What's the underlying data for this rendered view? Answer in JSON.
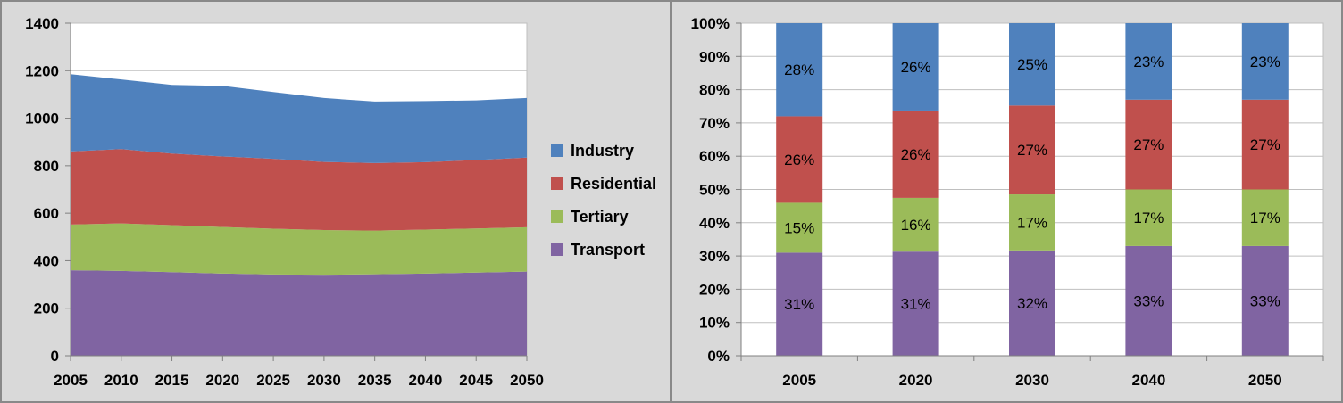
{
  "colors": {
    "industry_blue": "#4F81BD",
    "residential_red": "#C0504D",
    "tertiary_green": "#9BBB59",
    "transport_purple": "#8064A2",
    "panel_background": "#D9D9D9",
    "panel_border": "#898989",
    "plot_background": "#FFFFFF",
    "gridline": "#BFBFBF",
    "axis_line": "#808080",
    "label_text": "#000000"
  },
  "legend": {
    "position": "right",
    "items": [
      {
        "label": "Industry",
        "color": "#4F81BD"
      },
      {
        "label": "Residential",
        "color": "#C0504D"
      },
      {
        "label": "Tertiary",
        "color": "#9BBB59"
      },
      {
        "label": "Transport",
        "color": "#8064A2"
      }
    ]
  },
  "chart_data": [
    {
      "type": "area",
      "stacked": true,
      "title": "",
      "xlabel": "",
      "ylabel": "",
      "grid": true,
      "legend_position": "right",
      "x": [
        2005,
        2010,
        2015,
        2020,
        2025,
        2030,
        2035,
        2040,
        2045,
        2050
      ],
      "xtick_labels": [
        "2005",
        "2010",
        "2015",
        "2020",
        "2025",
        "2030",
        "2035",
        "2040",
        "2045",
        "2050"
      ],
      "ylim": [
        0,
        1400
      ],
      "ytick_step": 200,
      "ytick_labels": [
        "0",
        "200",
        "400",
        "600",
        "800",
        "1000",
        "1200",
        "1400"
      ],
      "series": [
        {
          "name": "Transport",
          "color": "#8064A2",
          "values": [
            360,
            357,
            352,
            346,
            342,
            341,
            343,
            346,
            350,
            354
          ]
        },
        {
          "name": "Tertiary",
          "color": "#9BBB59",
          "values": [
            192,
            200,
            198,
            196,
            193,
            188,
            184,
            185,
            186,
            187
          ]
        },
        {
          "name": "Residential",
          "color": "#C0504D",
          "values": [
            308,
            313,
            301,
            297,
            294,
            287,
            284,
            284,
            288,
            293
          ]
        },
        {
          "name": "Industry",
          "color": "#4F81BD",
          "values": [
            325,
            293,
            289,
            297,
            281,
            269,
            259,
            257,
            251,
            251
          ]
        }
      ]
    },
    {
      "type": "bar",
      "stacked": "percent",
      "title": "",
      "xlabel": "",
      "ylabel": "",
      "grid": true,
      "data_labels": true,
      "categories": [
        "2005",
        "2020",
        "2030",
        "2040",
        "2050"
      ],
      "ylim": [
        0,
        100
      ],
      "ytick_labels": [
        "0%",
        "10%",
        "20%",
        "30%",
        "40%",
        "50%",
        "60%",
        "70%",
        "80%",
        "90%",
        "100%"
      ],
      "series": [
        {
          "name": "Transport",
          "color": "#8064A2",
          "values": [
            31,
            31,
            32,
            33,
            33
          ],
          "labels": [
            "31%",
            "31%",
            "32%",
            "33%",
            "33%"
          ]
        },
        {
          "name": "Tertiary",
          "color": "#9BBB59",
          "values": [
            15,
            16,
            17,
            17,
            17
          ],
          "labels": [
            "15%",
            "16%",
            "17%",
            "17%",
            "17%"
          ]
        },
        {
          "name": "Residential",
          "color": "#C0504D",
          "values": [
            26,
            26,
            27,
            27,
            27
          ],
          "labels": [
            "26%",
            "26%",
            "27%",
            "27%",
            "27%"
          ]
        },
        {
          "name": "Industry",
          "color": "#4F81BD",
          "values": [
            28,
            26,
            25,
            23,
            23
          ],
          "labels": [
            "28%",
            "26%",
            "25%",
            "23%",
            "23%"
          ]
        }
      ]
    }
  ]
}
